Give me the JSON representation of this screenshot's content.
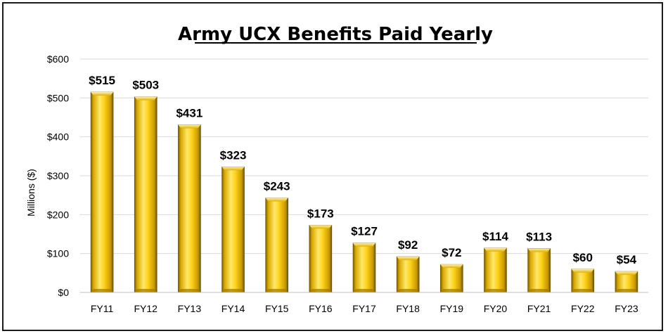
{
  "chart_data": {
    "type": "bar",
    "title": "Army UCX Benefits Paid Yearly",
    "xlabel": "",
    "ylabel": "Millions ($)",
    "ylim": [
      0,
      600
    ],
    "yticks": [
      0,
      100,
      200,
      300,
      400,
      500,
      600
    ],
    "ytick_labels": [
      "$0",
      "$100",
      "$200",
      "$300",
      "$400",
      "$500",
      "$600"
    ],
    "categories": [
      "FY11",
      "FY12",
      "FY13",
      "FY14",
      "FY15",
      "FY16",
      "FY17",
      "FY18",
      "FY19",
      "FY20",
      "FY21",
      "FY22",
      "FY23"
    ],
    "values": [
      515,
      503,
      431,
      323,
      243,
      173,
      127,
      92,
      72,
      114,
      113,
      60,
      54
    ],
    "data_labels": [
      "$515",
      "$503",
      "$431",
      "$323",
      "$243",
      "$173",
      "$127",
      "$92",
      "$72",
      "$114",
      "$113",
      "$60",
      "$54"
    ],
    "grid": true,
    "legend": "none",
    "colors": {
      "bar_light": "#ffe98a",
      "bar_mid": "#f5c400",
      "bar_dark": "#8a6a00",
      "grid": "#d9d9d9"
    }
  }
}
